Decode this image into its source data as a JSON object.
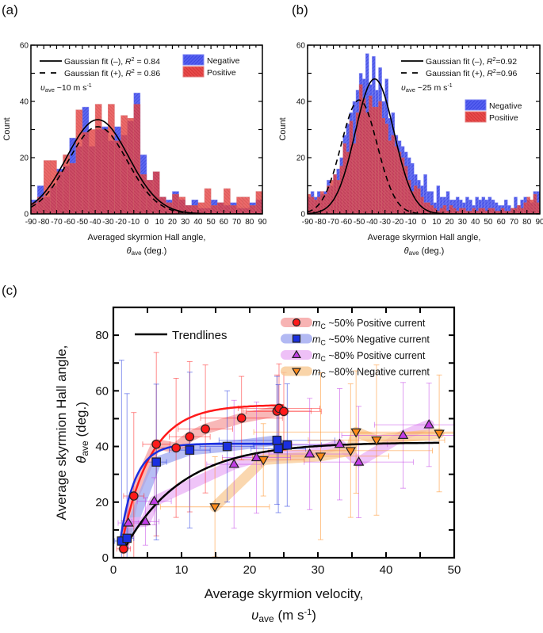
{
  "chart_data": [
    {
      "panel_label": "(a)",
      "type": "bar",
      "subtype": "overlaid-histogram",
      "xlabel": "Averaged skyrmion Hall angle,",
      "xlabel2_sym": "θ",
      "xlabel2_sub": "ave",
      "xlabel2_unit": " (deg.)",
      "ylabel": "Count",
      "xlim": [
        -90,
        90
      ],
      "ylim": [
        0,
        60
      ],
      "xticks": [
        "-90",
        "-80",
        "-70",
        "-60",
        "-50",
        "-40",
        "-30",
        "-20",
        "-10",
        "0",
        "10",
        "20",
        "30",
        "40",
        "50",
        "60",
        "70",
        "80",
        "90"
      ],
      "yticks": [
        "0",
        "20",
        "40",
        "60"
      ],
      "annotation": {
        "sym": "υ",
        "sub": "ave",
        "text": " ~10 m s",
        "sup": "-1"
      },
      "legend_lines": [
        {
          "label_pre": "Gaussian fit (–), ",
          "r2": "R",
          "r2sup": "2",
          "label_post": " = 0.84",
          "style": "solid"
        },
        {
          "label_pre": "Gaussian fit (+), ",
          "r2": "R",
          "r2sup": "2",
          "label_post": " = 0.86",
          "style": "dashed"
        }
      ],
      "legend_bars": [
        {
          "label": "Negative",
          "color": "#3a45e8"
        },
        {
          "label": "Positive",
          "color": "#e23b3b"
        }
      ],
      "bin_width": 5,
      "bin_starts": [
        -90,
        -85,
        -80,
        -75,
        -70,
        -65,
        -60,
        -55,
        -50,
        -45,
        -40,
        -35,
        -30,
        -25,
        -20,
        -15,
        -10,
        -5,
        0,
        5,
        10,
        15,
        20,
        25,
        30,
        35,
        40,
        45,
        50,
        55,
        60,
        65,
        70,
        75,
        80,
        85
      ],
      "series": [
        {
          "name": "Negative",
          "values": [
            5,
            10,
            6,
            10,
            16,
            17,
            27,
            24,
            38,
            24,
            30,
            31,
            26,
            31,
            28,
            33,
            43,
            21,
            12,
            15,
            6,
            5,
            8,
            5,
            3,
            5,
            2,
            2,
            5,
            4,
            3,
            4,
            2,
            2,
            4,
            5
          ]
        },
        {
          "name": "Positive",
          "values": [
            4,
            6,
            19,
            19,
            15,
            21,
            18,
            37,
            29,
            30,
            39,
            30,
            39,
            26,
            35,
            34,
            39,
            14,
            12,
            15,
            6,
            4,
            7,
            6,
            3,
            3,
            4,
            9,
            3,
            4,
            9,
            3,
            6,
            6,
            3,
            8
          ]
        }
      ],
      "fits": [
        {
          "name": "Gaussian fit (–)",
          "style": "solid",
          "amplitude": 33.5,
          "center": -38,
          "sigma": 24
        },
        {
          "name": "Gaussian fit (+)",
          "style": "dashed",
          "amplitude": 31,
          "center": -38,
          "sigma": 23
        }
      ]
    },
    {
      "panel_label": "(b)",
      "type": "bar",
      "subtype": "overlaid-histogram",
      "xlabel": "Average skyrmion Hall angle,",
      "xlabel2_sym": "θ",
      "xlabel2_sub": "ave",
      "xlabel2_unit": " (deg.)",
      "ylabel": "Count",
      "xlim": [
        -90,
        90
      ],
      "ylim": [
        0,
        60
      ],
      "xticks": [
        "-90",
        "-80",
        "-70",
        "-60",
        "-50",
        "-40",
        "-30",
        "-20",
        "-10",
        "0",
        "10",
        "20",
        "30",
        "40",
        "50",
        "60",
        "70",
        "80",
        "90"
      ],
      "yticks": [
        "0",
        "20",
        "40",
        "60"
      ],
      "annotation": {
        "sym": "υ",
        "sub": "ave",
        "text": " ~25 m s",
        "sup": "-1"
      },
      "legend_lines": [
        {
          "label_pre": "Gaussian fit (–), ",
          "r2": "R",
          "r2sup": "2",
          "label_post": "=0.92",
          "style": "solid"
        },
        {
          "label_pre": "Gaussian fit (+), ",
          "r2": "R",
          "r2sup": "2",
          "label_post": "=0.96",
          "style": "dashed"
        }
      ],
      "legend_bars": [
        {
          "label": "Negative",
          "color": "#3a45e8"
        },
        {
          "label": "Positive",
          "color": "#e23b3b"
        }
      ],
      "bin_width": 2.5,
      "bin_starts": [
        -90,
        -87.5,
        -85,
        -82.5,
        -80,
        -77.5,
        -75,
        -72.5,
        -70,
        -67.5,
        -65,
        -62.5,
        -60,
        -57.5,
        -55,
        -52.5,
        -50,
        -47.5,
        -45,
        -42.5,
        -40,
        -37.5,
        -35,
        -32.5,
        -30,
        -27.5,
        -25,
        -22.5,
        -20,
        -17.5,
        -15,
        -12.5,
        -10,
        -7.5,
        -5,
        -2.5,
        0,
        2.5,
        5,
        7.5,
        10,
        12.5,
        15,
        17.5,
        20,
        22.5,
        25,
        27.5,
        30,
        32.5,
        35,
        37.5,
        40,
        42.5,
        45,
        47.5,
        50,
        52.5,
        55,
        57.5,
        60,
        62.5,
        65,
        67.5,
        70,
        72.5,
        75,
        77.5,
        80,
        82.5,
        85,
        87.5
      ],
      "series": [
        {
          "name": "Negative",
          "values": [
            6,
            8,
            6,
            8,
            7,
            8,
            12,
            10,
            14,
            16,
            20,
            28,
            32,
            36,
            40,
            44,
            50,
            48,
            57,
            46,
            56,
            44,
            52,
            40,
            48,
            34,
            36,
            28,
            26,
            24,
            22,
            20,
            18,
            14,
            12,
            10,
            14,
            8,
            8,
            4,
            10,
            6,
            6,
            8,
            5,
            5,
            6,
            5,
            4,
            6,
            5,
            3,
            6,
            5,
            6,
            5,
            6,
            5,
            4,
            3,
            3,
            5,
            3,
            2,
            6,
            3,
            5,
            6,
            5,
            4,
            8,
            8
          ]
        },
        {
          "name": "Positive",
          "values": [
            7,
            6,
            5,
            6,
            8,
            7,
            10,
            12,
            14,
            12,
            17,
            25,
            22,
            33,
            25,
            36,
            46,
            41,
            36,
            42,
            38,
            38,
            40,
            34,
            32,
            26,
            28,
            24,
            22,
            20,
            17,
            12,
            8,
            10,
            9,
            6,
            4,
            4,
            3,
            2,
            1,
            2,
            3,
            1,
            3,
            2,
            1,
            2,
            2,
            1,
            1,
            2,
            1,
            2,
            2,
            1,
            2,
            2,
            1,
            1,
            2,
            1,
            1,
            2,
            2,
            3,
            2,
            4,
            6,
            5,
            7,
            4
          ]
        }
      ],
      "fits": [
        {
          "name": "Gaussian fit (–)",
          "style": "solid",
          "amplitude": 48,
          "center": -38,
          "sigma": 15
        },
        {
          "name": "Gaussian fit (+)",
          "style": "dashed",
          "amplitude": 40.5,
          "center": -50,
          "sigma": 14
        }
      ]
    },
    {
      "panel_label": "(c)",
      "type": "scatter",
      "xlabel": "Average skyrmion velocity,",
      "xlabel2_sym": "υ",
      "xlabel2_sub": "ave",
      "xlabel2_unit": " (m s",
      "xlabel2_sup": "-1",
      "xlabel2_end": ")",
      "ylabel": "Average skyrmion Hall angle,",
      "ylabel2_sym": "θ",
      "ylabel2_sub": "ave",
      "ylabel2_unit": " (deg.)",
      "xlim": [
        0,
        50
      ],
      "ylim": [
        0,
        90
      ],
      "xticks": [
        "0",
        "10",
        "20",
        "30",
        "40",
        "50"
      ],
      "xtick_values": [
        0,
        10,
        20,
        30,
        40,
        50
      ],
      "yticks": [
        "0",
        "20",
        "40",
        "60",
        "80"
      ],
      "ytick_values": [
        0,
        20,
        40,
        60,
        80
      ],
      "trend_legend": "Trendlines",
      "legend_placement": "top-right",
      "series": [
        {
          "name": "mC ~50% Positive current",
          "label_m": "m",
          "label_sub": "C",
          "label_rest": " ~50% Positive current",
          "marker": "circle",
          "color": "#ff1a1a",
          "band": "#f5a0a0",
          "x": [
            1.5,
            3.0,
            6.3,
            9.2,
            11.2,
            13.5,
            18.8,
            24.0,
            24.3,
            25.0
          ],
          "y": [
            3.2,
            22.2,
            40.8,
            39.5,
            43.5,
            46.3,
            50.2,
            52.7,
            53.7,
            52.6
          ],
          "yerr": [
            10,
            30,
            33,
            25,
            27,
            23,
            15,
            13,
            16,
            14
          ],
          "xerr": [
            1.0,
            1.5,
            2.0,
            2.5,
            3.0,
            4.0,
            6.0,
            5.0,
            6.0,
            5.5
          ]
        },
        {
          "name": "mC ~50% Negative current",
          "label_m": "m",
          "label_sub": "C",
          "label_rest": " ~50% Negative current",
          "marker": "square",
          "color": "#1a2fe0",
          "band": "#9fa8f0",
          "x": [
            1.2,
            2.0,
            6.3,
            11.2,
            16.7,
            24.0,
            24.2,
            25.5
          ],
          "y": [
            6.0,
            7.0,
            34.4,
            38.7,
            40.0,
            42.2,
            39.2,
            40.5
          ],
          "yerr": [
            65,
            52,
            28,
            28,
            20,
            23,
            23,
            22
          ],
          "xerr": [
            1.0,
            1.0,
            1.5,
            3.0,
            4.0,
            8.5,
            4.0,
            5.0
          ]
        },
        {
          "name": "mC ~80% Positive current",
          "label_m": "m",
          "label_sub": "C",
          "label_rest": " ~80% Positive current",
          "marker": "triangle-up",
          "color": "#c23de6",
          "band": "#eab0f5",
          "x": [
            2.2,
            4.7,
            6.0,
            17.7,
            21.0,
            28.8,
            33.2,
            36.0,
            42.5,
            46.3
          ],
          "y": [
            12.5,
            13.0,
            20.3,
            33.6,
            36.0,
            37.3,
            40.8,
            34.4,
            44.0,
            47.8
          ],
          "yerr": [
            9,
            8.5,
            8.5,
            23,
            20,
            20,
            20,
            20,
            19,
            15
          ],
          "xerr": [
            1.5,
            2.0,
            2.5,
            4.0,
            5.0,
            6.0,
            7.0,
            8.0,
            9.0,
            8.0
          ]
        },
        {
          "name": "mC ~80% Negative current",
          "label_m": "m",
          "label_sub": "C",
          "label_rest": " ~80% Negative current",
          "marker": "triangle-down",
          "color": "#ff8a1a",
          "band": "#f8c994",
          "x": [
            14.9,
            22.0,
            30.4,
            34.8,
            35.6,
            38.6,
            47.8
          ],
          "y": [
            18.3,
            35.2,
            36.5,
            38.5,
            45.2,
            42.3,
            44.7
          ],
          "yerr": [
            18,
            13,
            30,
            24,
            22,
            27,
            21
          ],
          "xerr": [
            8.0,
            6.0,
            10.0,
            12.0,
            15.0,
            10.0,
            12.0
          ]
        }
      ],
      "trendlines": [
        {
          "for": "mC ~50% Positive current",
          "color": "#ff1a1a",
          "ymax": 55,
          "tau": 4.2,
          "x0": 1.2,
          "xend": 25.0
        },
        {
          "for": "mC ~50% Negative current",
          "color": "#1a2fe0",
          "ymax": 41,
          "tau": 2.2,
          "x0": 1.0,
          "xend": 25.0
        },
        {
          "for": "mC ~80%",
          "color": "#000000",
          "ymax": 41.5,
          "tau": 8.5,
          "x0": 1.3,
          "xend": 48.0
        }
      ]
    }
  ]
}
